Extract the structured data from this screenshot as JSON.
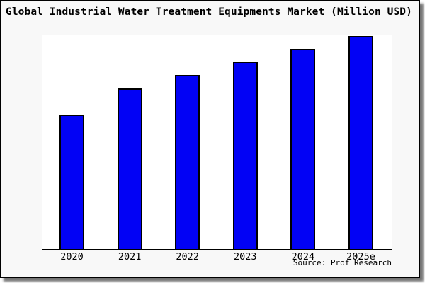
{
  "title": "Global Industrial Water Treatment Equipments Market (Million USD)",
  "source": "Source: Prof Research",
  "chart_data": {
    "type": "bar",
    "title": "Global Industrial Water Treatment Equipments Market (Million USD)",
    "categories": [
      "2020",
      "2021",
      "2022",
      "2023",
      "2024",
      "2025e"
    ],
    "values": [
      63.1,
      75.4,
      81.7,
      88.0,
      94.0,
      100.0
    ],
    "values_note": "relative bar heights, percent of tallest (2025e) bar; no y-axis tick labels shown in chart",
    "xlabel": "",
    "ylabel": "",
    "ylim": [
      0,
      100.7
    ],
    "grid": false,
    "legend": "none",
    "bar_color": "#0202f5",
    "bar_edge_color": "#000000",
    "plot_background": "#ffffff",
    "figure_background": "#f8f8f8",
    "source_note": "Source: Prof Research"
  }
}
